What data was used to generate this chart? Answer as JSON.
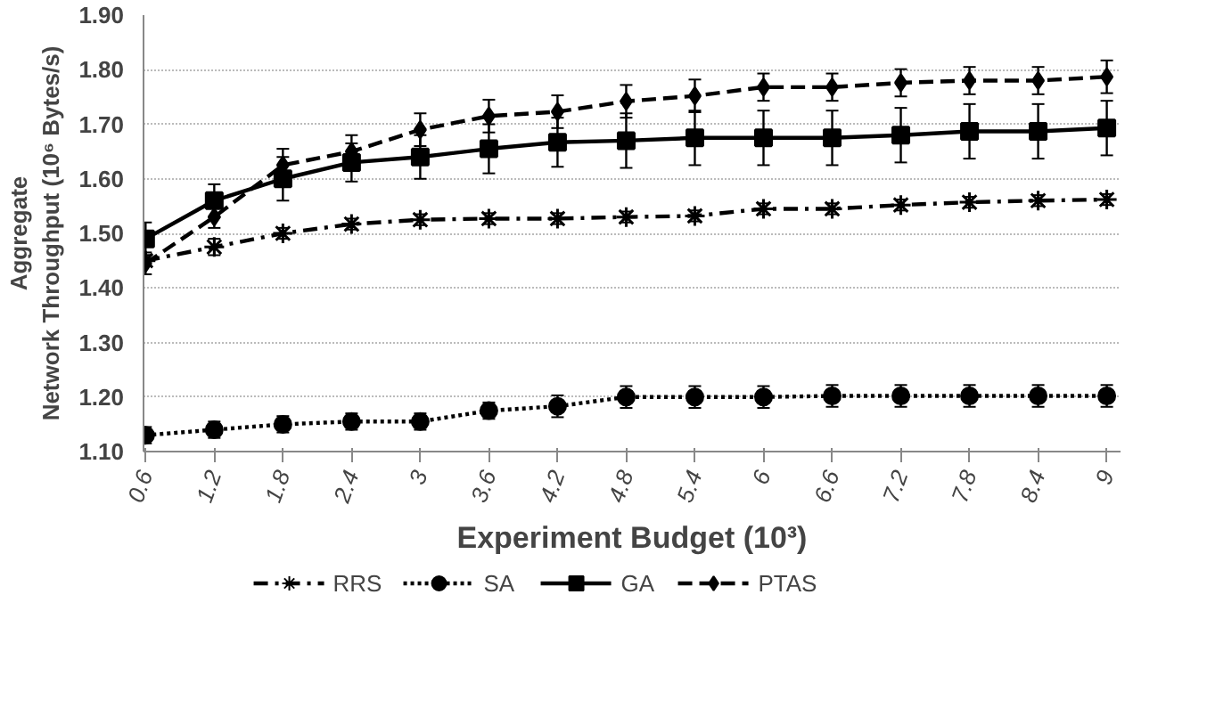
{
  "chart_data": {
    "type": "line",
    "xlabel": "Experiment Budget (10³)",
    "ylabel": "Aggregate Network Throughput (10⁶ Bytes/s)",
    "categories": [
      "0.6",
      "1.2",
      "1.8",
      "2.4",
      "3",
      "3.6",
      "4.2",
      "4.8",
      "5.4",
      "6",
      "6.6",
      "7.2",
      "7.8",
      "8.4",
      "9"
    ],
    "series": [
      {
        "name": "RRS",
        "color": "#000000",
        "marker": "cross",
        "line_style": "dashdot",
        "values": [
          1.45,
          1.475,
          1.5,
          1.517,
          1.525,
          1.527,
          1.527,
          1.53,
          1.532,
          1.545,
          1.545,
          1.552,
          1.557,
          1.56,
          1.562
        ],
        "errors": [
          0.01,
          0.015,
          0.01,
          0.01,
          0.01,
          0.01,
          0.01,
          0.01,
          0.01,
          0.01,
          0.01,
          0.01,
          0.01,
          0.01,
          0.01
        ]
      },
      {
        "name": "SA",
        "color": "#000000",
        "marker": "circle",
        "line_style": "dotted",
        "values": [
          1.13,
          1.14,
          1.15,
          1.155,
          1.155,
          1.175,
          1.183,
          1.2,
          1.2,
          1.2,
          1.202,
          1.202,
          1.202,
          1.202,
          1.202
        ],
        "errors": [
          0.015,
          0.015,
          0.015,
          0.015,
          0.015,
          0.015,
          0.02,
          0.02,
          0.02,
          0.02,
          0.02,
          0.02,
          0.02,
          0.02,
          0.02
        ]
      },
      {
        "name": "GA",
        "color": "#000000",
        "marker": "square",
        "line_style": "solid",
        "values": [
          1.49,
          1.56,
          1.6,
          1.63,
          1.64,
          1.655,
          1.667,
          1.67,
          1.675,
          1.675,
          1.675,
          1.68,
          1.687,
          1.687,
          1.693
        ],
        "errors": [
          0.03,
          0.03,
          0.04,
          0.035,
          0.04,
          0.045,
          0.045,
          0.05,
          0.05,
          0.05,
          0.05,
          0.05,
          0.05,
          0.05,
          0.05
        ]
      },
      {
        "name": "PTAS",
        "color": "#000000",
        "marker": "diamond",
        "line_style": "dashed",
        "values": [
          1.445,
          1.53,
          1.625,
          1.65,
          1.69,
          1.715,
          1.723,
          1.742,
          1.752,
          1.768,
          1.768,
          1.776,
          1.78,
          1.78,
          1.787
        ],
        "errors": [
          0.02,
          0.02,
          0.03,
          0.03,
          0.03,
          0.03,
          0.03,
          0.03,
          0.03,
          0.025,
          0.025,
          0.025,
          0.025,
          0.025,
          0.03
        ]
      }
    ],
    "ylim": [
      1.1,
      1.9
    ],
    "yticks": [
      {
        "value": 1.1,
        "label": "1.10"
      },
      {
        "value": 1.2,
        "label": "1.20"
      },
      {
        "value": 1.3,
        "label": "1.30"
      },
      {
        "value": 1.4,
        "label": "1.40"
      },
      {
        "value": 1.5,
        "label": "1.50"
      },
      {
        "value": 1.6,
        "label": "1.60"
      },
      {
        "value": 1.7,
        "label": "1.70"
      },
      {
        "value": 1.8,
        "label": "1.80"
      },
      {
        "value": 1.9,
        "label": "1.90"
      }
    ],
    "grid": "y",
    "legend": "bottom"
  }
}
